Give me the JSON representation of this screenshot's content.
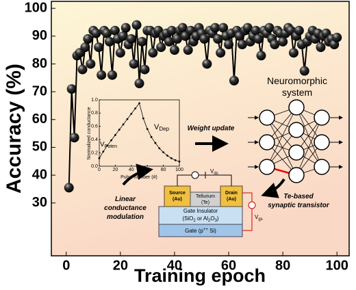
{
  "chart_data": [
    {
      "type": "line",
      "x_label": "Training epoch",
      "y_label": "Accuracy (%)",
      "x": [
        1,
        2,
        3,
        4,
        5,
        6,
        7,
        8,
        9,
        10,
        11,
        12,
        13,
        14,
        15,
        16,
        17,
        18,
        19,
        20,
        21,
        22,
        23,
        24,
        25,
        26,
        27,
        28,
        29,
        30,
        31,
        32,
        33,
        34,
        35,
        36,
        37,
        38,
        39,
        40,
        41,
        42,
        43,
        44,
        45,
        46,
        47,
        48,
        49,
        50,
        51,
        52,
        53,
        54,
        55,
        56,
        57,
        58,
        59,
        60,
        61,
        62,
        63,
        64,
        65,
        66,
        67,
        68,
        69,
        70,
        71,
        72,
        73,
        74,
        75,
        76,
        77,
        78,
        79,
        80,
        81,
        82,
        83,
        84,
        85,
        86,
        87,
        88,
        89,
        90,
        91,
        92,
        93,
        94,
        95,
        96,
        97,
        98,
        99,
        100
      ],
      "values": [
        35.5,
        71,
        53.5,
        83,
        84,
        78,
        86,
        89,
        80,
        92,
        91,
        86,
        76,
        92,
        91,
        88,
        76,
        92,
        89,
        84,
        90,
        93,
        87,
        89,
        80,
        94,
        73,
        88,
        78,
        92,
        92,
        84,
        91,
        92,
        86,
        90,
        91,
        88,
        92,
        85,
        89,
        92,
        93,
        90,
        85,
        92,
        88,
        90,
        93,
        91,
        89,
        80,
        92,
        91,
        93,
        89,
        84,
        93,
        90,
        87,
        91,
        74,
        92,
        90,
        87,
        92,
        93,
        88,
        90,
        92,
        89,
        83,
        92,
        91,
        93,
        89,
        87,
        92,
        91,
        88,
        91,
        93,
        92,
        84,
        90,
        92,
        87,
        77.5,
        88,
        90,
        92,
        89,
        91,
        86,
        90,
        91,
        88,
        89,
        87,
        89.5
      ],
      "color": "#000000",
      "xlim": [
        -5.5,
        104.5
      ],
      "xticks": [
        0,
        20,
        40,
        60,
        80,
        100
      ],
      "ylim": [
        11,
        102.5
      ],
      "yticks": [
        30,
        40,
        50,
        60,
        70,
        80,
        90,
        100
      ]
    },
    {
      "type": "line",
      "x_label": "Pulse number (#)",
      "y_label": "Normalized conductance",
      "x": [
        0,
        5,
        10,
        15,
        20,
        25,
        30,
        35,
        40,
        45,
        50,
        55,
        60,
        65,
        70,
        75,
        80,
        85,
        90,
        95,
        100
      ],
      "values": [
        0.12,
        0.22,
        0.31,
        0.39,
        0.47,
        0.55,
        0.63,
        0.71,
        0.79,
        0.87,
        0.95,
        0.72,
        0.56,
        0.44,
        0.35,
        0.27,
        0.21,
        0.16,
        0.12,
        0.09,
        0.07
      ],
      "color": "#000000",
      "xlim": [
        0,
        100
      ],
      "xticks": [
        0,
        20,
        40,
        60,
        80,
        100
      ],
      "ylim": [
        0,
        1
      ],
      "yticks": [
        {
          "value": 0,
          "label": "0.0"
        },
        0.2,
        0.4,
        0.6,
        0.8,
        {
          "value": 1,
          "label": "1.0"
        }
      ]
    }
  ],
  "diagram": {
    "v_poten": [
      "V",
      "Poten"
    ],
    "v_dep": [
      "V",
      "Dep"
    ],
    "weight_update": "Weight update",
    "neuromorphic": [
      "Neuromorphic",
      "system"
    ],
    "transistor_label": [
      "Te-based",
      "synaptic transistor"
    ],
    "linear": [
      "Linear",
      "conductance",
      "modulation"
    ],
    "source": [
      "Source",
      "(Au)"
    ],
    "tellurium": [
      "Tellurium",
      "(Te)"
    ],
    "drain": [
      "Drain",
      "(Au)"
    ],
    "insulator_title": "Gate Insulator",
    "insulator_parts": [
      "(SiO",
      "2",
      " or Al",
      "2",
      "O",
      "3",
      ")"
    ],
    "gate": [
      "Gate (p",
      "++",
      " Si)"
    ],
    "vds": [
      "V",
      "ds"
    ],
    "vgs": [
      "V",
      "gs"
    ]
  }
}
